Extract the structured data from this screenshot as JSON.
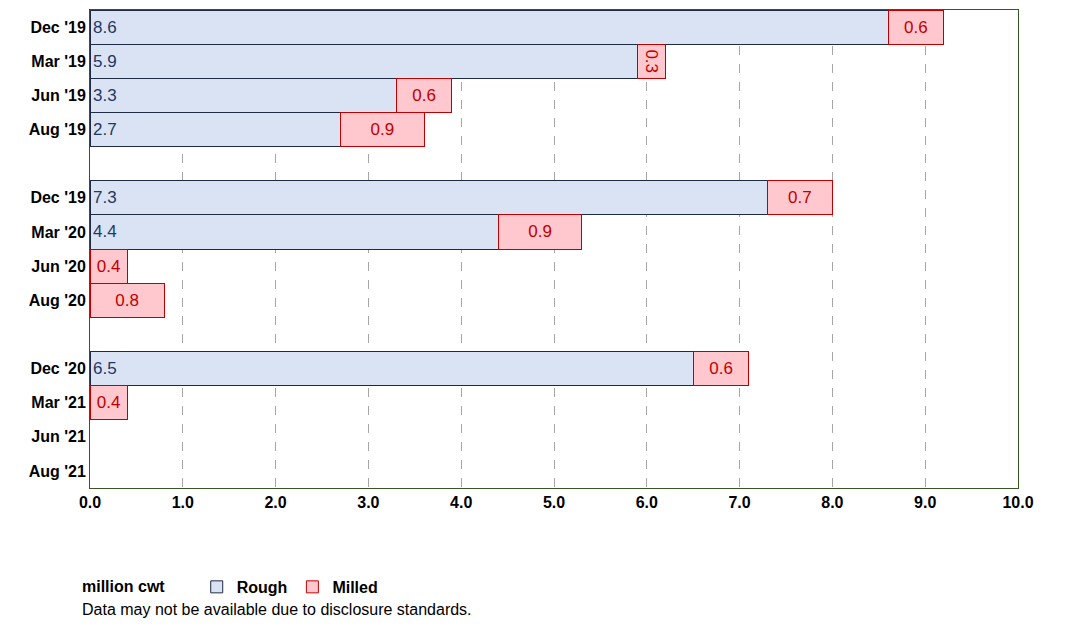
{
  "chart_data": {
    "type": "bar",
    "orientation": "horizontal",
    "stacked": true,
    "data_labels": true,
    "grid": true,
    "legend": "bottom",
    "categories": [
      "Dec '19",
      "Mar '19",
      "Jun '19",
      "Aug '19",
      null,
      "Dec '19",
      "Mar '20",
      "Jun '20",
      "Aug '20",
      null,
      "Dec '20",
      "Mar '21",
      "Jun '21",
      "Aug '21"
    ],
    "series": [
      {
        "name": "Rough",
        "color": "#dae3f3",
        "values": [
          8.6,
          5.9,
          3.3,
          2.7,
          null,
          7.3,
          4.4,
          null,
          null,
          null,
          6.5,
          null,
          null,
          null
        ]
      },
      {
        "name": "Milled",
        "color": "#ffc7ce",
        "values": [
          0.6,
          0.3,
          0.6,
          0.9,
          null,
          0.7,
          0.9,
          0.4,
          0.8,
          null,
          0.6,
          0.4,
          null,
          null
        ]
      }
    ],
    "xlim": [
      0,
      10
    ],
    "xticks": [
      {
        "value": 0,
        "label": "0.0"
      },
      {
        "value": 1,
        "label": "1.0"
      },
      {
        "value": 2,
        "label": "2.0"
      },
      {
        "value": 3,
        "label": "3.0"
      },
      {
        "value": 4,
        "label": "4.0"
      },
      {
        "value": 5,
        "label": "5.0"
      },
      {
        "value": 6,
        "label": "6.0"
      },
      {
        "value": 7,
        "label": "7.0"
      },
      {
        "value": 8,
        "label": "8.0"
      },
      {
        "value": 9,
        "label": "9.0"
      },
      {
        "value": 10,
        "label": "10.0"
      }
    ],
    "annotations": [
      "million cwt",
      "Data may not be available due to disclosure standards."
    ]
  }
}
